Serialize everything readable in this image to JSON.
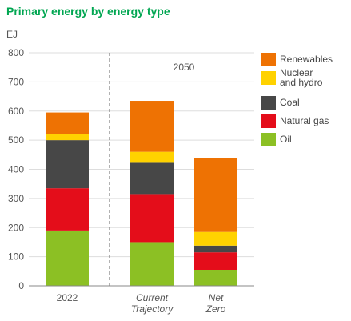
{
  "chart_data": {
    "type": "bar",
    "stacked": true,
    "title": "Primary energy by energy type",
    "ylabel": "EJ",
    "ylim": [
      0,
      800
    ],
    "yticks": [
      "0",
      "100",
      "200",
      "300",
      "400",
      "500",
      "600",
      "700",
      "800"
    ],
    "grid": "horizontal",
    "categories": [
      "2022",
      "Current Trajectory",
      "Net Zero"
    ],
    "category_lines": [
      [
        "2022"
      ],
      [
        "Current",
        "Trajectory"
      ],
      [
        "Net",
        "Zero"
      ]
    ],
    "group_label": "2050",
    "legend_position": "right",
    "series": [
      {
        "name": "Oil",
        "color": "#8CC024",
        "values": [
          190,
          150,
          55
        ]
      },
      {
        "name": "Natural gas",
        "color": "#E40D1A",
        "values": [
          145,
          165,
          60
        ]
      },
      {
        "name": "Coal",
        "color": "#474747",
        "values": [
          165,
          110,
          23
        ]
      },
      {
        "name": "Nuclear and hydro",
        "color": "#FFD200",
        "values": [
          22,
          35,
          47
        ]
      },
      {
        "name": "Renewables",
        "color": "#EE7203",
        "values": [
          73,
          175,
          253
        ]
      }
    ],
    "legend": [
      {
        "lines": [
          "Renewables"
        ],
        "color": "#EE7203"
      },
      {
        "lines": [
          "Nuclear",
          "and hydro"
        ],
        "color": "#FFD200"
      },
      {
        "lines": [
          "Coal"
        ],
        "color": "#474747"
      },
      {
        "lines": [
          "Natural gas"
        ],
        "color": "#E40D1A"
      },
      {
        "lines": [
          "Oil"
        ],
        "color": "#8CC024"
      }
    ],
    "title_color": "#00A651"
  }
}
